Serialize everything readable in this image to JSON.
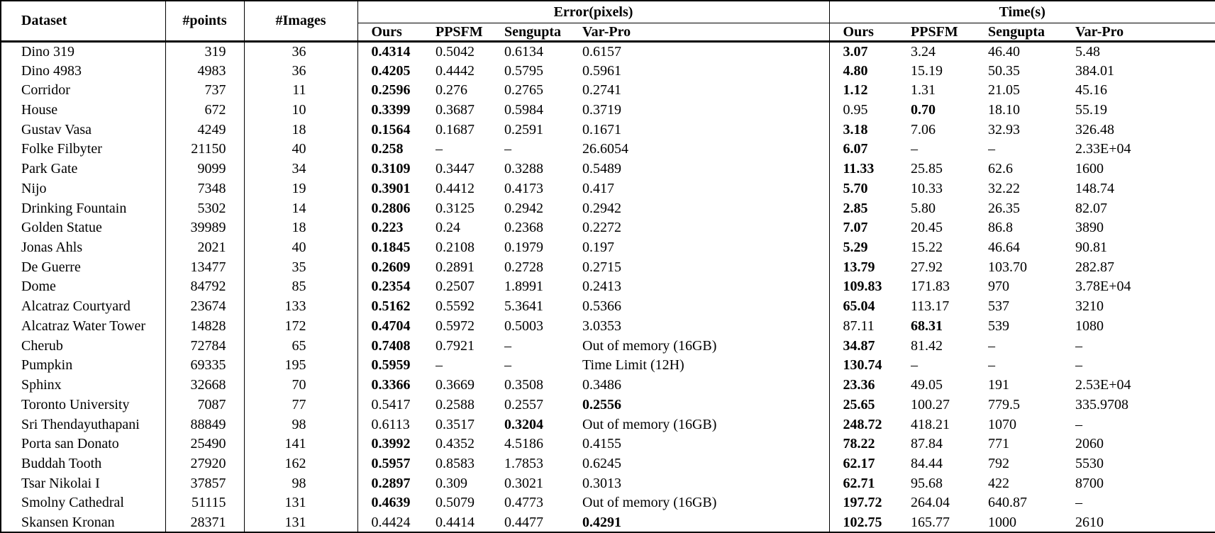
{
  "table": {
    "header": {
      "dataset": "Dataset",
      "points": "#points",
      "images": "#Images",
      "error_group": "Error(pixels)",
      "time_group": "Time(s)",
      "methods": [
        "Ours",
        "PPSFM",
        "Sengupta",
        "Var-Pro"
      ]
    },
    "rows": [
      {
        "dataset": "Dino 319",
        "points": "319",
        "images": "36",
        "error": [
          "0.4314",
          "0.5042",
          "0.6134",
          "0.6157"
        ],
        "error_bold": [
          0
        ],
        "time": [
          "3.07",
          "3.24",
          "46.40",
          "5.48"
        ],
        "time_bold": [
          0
        ]
      },
      {
        "dataset": "Dino 4983",
        "points": "4983",
        "images": "36",
        "error": [
          "0.4205",
          "0.4442",
          "0.5795",
          "0.5961"
        ],
        "error_bold": [
          0
        ],
        "time": [
          "4.80",
          "15.19",
          "50.35",
          "384.01"
        ],
        "time_bold": [
          0
        ]
      },
      {
        "dataset": "Corridor",
        "points": "737",
        "images": "11",
        "error": [
          "0.2596",
          "0.276",
          "0.2765",
          "0.2741"
        ],
        "error_bold": [
          0
        ],
        "time": [
          "1.12",
          "1.31",
          "21.05",
          "45.16"
        ],
        "time_bold": [
          0
        ]
      },
      {
        "dataset": "House",
        "points": "672",
        "images": "10",
        "error": [
          "0.3399",
          "0.3687",
          "0.5984",
          "0.3719"
        ],
        "error_bold": [
          0
        ],
        "time": [
          "0.95",
          "0.70",
          "18.10",
          "55.19"
        ],
        "time_bold": [
          1
        ]
      },
      {
        "dataset": "Gustav Vasa",
        "points": "4249",
        "images": "18",
        "error": [
          "0.1564",
          "0.1687",
          "0.2591",
          "0.1671"
        ],
        "error_bold": [
          0
        ],
        "time": [
          "3.18",
          "7.06",
          "32.93",
          "326.48"
        ],
        "time_bold": [
          0
        ]
      },
      {
        "dataset": "Folke Filbyter",
        "points": "21150",
        "images": "40",
        "error": [
          "0.258",
          "–",
          "–",
          "26.6054"
        ],
        "error_bold": [
          0
        ],
        "time": [
          "6.07",
          "–",
          "–",
          "2.33E+04"
        ],
        "time_bold": [
          0
        ]
      },
      {
        "dataset": "Park Gate",
        "points": "9099",
        "images": "34",
        "error": [
          "0.3109",
          "0.3447",
          "0.3288",
          "0.5489"
        ],
        "error_bold": [
          0
        ],
        "time": [
          "11.33",
          "25.85",
          "62.6",
          "1600"
        ],
        "time_bold": [
          0
        ]
      },
      {
        "dataset": "Nijo",
        "points": "7348",
        "images": "19",
        "error": [
          "0.3901",
          "0.4412",
          "0.4173",
          "0.417"
        ],
        "error_bold": [
          0
        ],
        "time": [
          "5.70",
          "10.33",
          "32.22",
          "148.74"
        ],
        "time_bold": [
          0
        ]
      },
      {
        "dataset": "Drinking Fountain",
        "points": "5302",
        "images": "14",
        "error": [
          "0.2806",
          "0.3125",
          "0.2942",
          "0.2942"
        ],
        "error_bold": [
          0
        ],
        "time": [
          "2.85",
          "5.80",
          "26.35",
          "82.07"
        ],
        "time_bold": [
          0
        ]
      },
      {
        "dataset": "Golden Statue",
        "points": "39989",
        "images": "18",
        "error": [
          "0.223",
          "0.24",
          "0.2368",
          "0.2272"
        ],
        "error_bold": [
          0
        ],
        "time": [
          "7.07",
          "20.45",
          "86.8",
          "3890"
        ],
        "time_bold": [
          0
        ]
      },
      {
        "dataset": "Jonas Ahls",
        "points": "2021",
        "images": "40",
        "error": [
          "0.1845",
          "0.2108",
          "0.1979",
          "0.197"
        ],
        "error_bold": [
          0
        ],
        "time": [
          "5.29",
          "15.22",
          "46.64",
          "90.81"
        ],
        "time_bold": [
          0
        ]
      },
      {
        "dataset": "De Guerre",
        "points": "13477",
        "images": "35",
        "error": [
          "0.2609",
          "0.2891",
          "0.2728",
          "0.2715"
        ],
        "error_bold": [
          0
        ],
        "time": [
          "13.79",
          "27.92",
          "103.70",
          "282.87"
        ],
        "time_bold": [
          0
        ]
      },
      {
        "dataset": "Dome",
        "points": "84792",
        "images": "85",
        "error": [
          "0.2354",
          "0.2507",
          "1.8991",
          "0.2413"
        ],
        "error_bold": [
          0
        ],
        "time": [
          "109.83",
          "171.83",
          "970",
          "3.78E+04"
        ],
        "time_bold": [
          0
        ]
      },
      {
        "dataset": "Alcatraz Courtyard",
        "points": "23674",
        "images": "133",
        "error": [
          "0.5162",
          "0.5592",
          "5.3641",
          "0.5366"
        ],
        "error_bold": [
          0
        ],
        "time": [
          "65.04",
          "113.17",
          "537",
          "3210"
        ],
        "time_bold": [
          0
        ]
      },
      {
        "dataset": "Alcatraz Water Tower",
        "points": "14828",
        "images": "172",
        "error": [
          "0.4704",
          "0.5972",
          "0.5003",
          "3.0353"
        ],
        "error_bold": [
          0
        ],
        "time": [
          "87.11",
          "68.31",
          "539",
          "1080"
        ],
        "time_bold": [
          1
        ]
      },
      {
        "dataset": "Cherub",
        "points": "72784",
        "images": "65",
        "error": [
          "0.7408",
          "0.7921",
          "–",
          "Out of memory (16GB)"
        ],
        "error_bold": [
          0
        ],
        "time": [
          "34.87",
          "81.42",
          "–",
          "–"
        ],
        "time_bold": [
          0
        ]
      },
      {
        "dataset": "Pumpkin",
        "points": "69335",
        "images": "195",
        "error": [
          "0.5959",
          "–",
          "–",
          "Time Limit (12H)"
        ],
        "error_bold": [
          0
        ],
        "time": [
          "130.74",
          "–",
          "–",
          "–"
        ],
        "time_bold": [
          0
        ]
      },
      {
        "dataset": "Sphinx",
        "points": "32668",
        "images": "70",
        "error": [
          "0.3366",
          "0.3669",
          "0.3508",
          "0.3486"
        ],
        "error_bold": [
          0
        ],
        "time": [
          "23.36",
          "49.05",
          "191",
          "2.53E+04"
        ],
        "time_bold": [
          0
        ]
      },
      {
        "dataset": "Toronto University",
        "points": "7087",
        "images": "77",
        "error": [
          "0.5417",
          "0.2588",
          "0.2557",
          "0.2556"
        ],
        "error_bold": [
          3
        ],
        "time": [
          "25.65",
          "100.27",
          "779.5",
          "335.9708"
        ],
        "time_bold": [
          0
        ]
      },
      {
        "dataset": "Sri Thendayuthapani",
        "points": "88849",
        "images": "98",
        "error": [
          "0.6113",
          "0.3517",
          "0.3204",
          "Out of memory (16GB)"
        ],
        "error_bold": [
          2
        ],
        "time": [
          "248.72",
          "418.21",
          "1070",
          "–"
        ],
        "time_bold": [
          0
        ]
      },
      {
        "dataset": "Porta san Donato",
        "points": "25490",
        "images": "141",
        "error": [
          "0.3992",
          "0.4352",
          "4.5186",
          "0.4155"
        ],
        "error_bold": [
          0
        ],
        "time": [
          "78.22",
          "87.84",
          "771",
          "2060"
        ],
        "time_bold": [
          0
        ]
      },
      {
        "dataset": "Buddah Tooth",
        "points": "27920",
        "images": "162",
        "error": [
          "0.5957",
          "0.8583",
          "1.7853",
          "0.6245"
        ],
        "error_bold": [
          0
        ],
        "time": [
          "62.17",
          "84.44",
          "792",
          "5530"
        ],
        "time_bold": [
          0
        ]
      },
      {
        "dataset": "Tsar Nikolai I",
        "points": "37857",
        "images": "98",
        "error": [
          "0.2897",
          "0.309",
          "0.3021",
          "0.3013"
        ],
        "error_bold": [
          0
        ],
        "time": [
          "62.71",
          "95.68",
          "422",
          "8700"
        ],
        "time_bold": [
          0
        ]
      },
      {
        "dataset": "Smolny Cathedral",
        "points": "51115",
        "images": "131",
        "error": [
          "0.4639",
          "0.5079",
          "0.4773",
          "Out of memory (16GB)"
        ],
        "error_bold": [
          0
        ],
        "time": [
          "197.72",
          "264.04",
          "640.87",
          "–"
        ],
        "time_bold": [
          0
        ]
      },
      {
        "dataset": "Skansen Kronan",
        "points": "28371",
        "images": "131",
        "error": [
          "0.4424",
          "0.4414",
          "0.4477",
          "0.4291"
        ],
        "error_bold": [
          3
        ],
        "time": [
          "102.75",
          "165.77",
          "1000",
          "2610"
        ],
        "time_bold": [
          0
        ]
      }
    ]
  }
}
